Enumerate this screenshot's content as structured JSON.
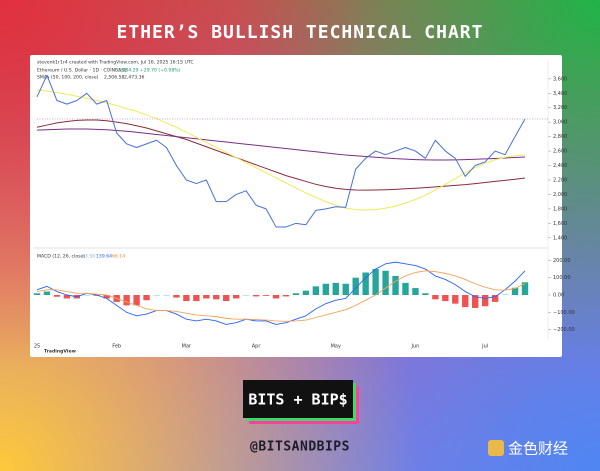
{
  "header": {
    "title": "ETHER’S BULLISH TECHNICAL CHART"
  },
  "logo": "BITS + BIP$",
  "handle": "@BITSANDBIPS",
  "watermark": "金色财经",
  "tradingview": "TradingView",
  "chart_data": [
    {
      "type": "line",
      "attribution": "stevenk1r1r4 created with TradingView.com, Jul 16, 2025 16:15 UTC",
      "title": "Ethereum / U.S. Dollar · 1D · COINBASE",
      "quote": "3,044.29 +29.70 (+0.98%)",
      "indicator_label": "SMAs (50, 100, 200, close)",
      "indicator_values": [
        "2,506.58",
        "2,473.36"
      ],
      "ylim": [
        1300,
        3750
      ],
      "yticks": [
        {
          "value": 1400,
          "label": "1,400"
        },
        {
          "value": 1600,
          "label": "1,600"
        },
        {
          "value": 1800,
          "label": "1,800"
        },
        {
          "value": 2000,
          "label": "2,000"
        },
        {
          "value": 2200,
          "label": "2,200"
        },
        {
          "value": 2400,
          "label": "2,400"
        },
        {
          "value": 2600,
          "label": "2,600"
        },
        {
          "value": 2800,
          "label": "2,800"
        },
        {
          "value": 3000,
          "label": "3,000"
        },
        {
          "value": 3200,
          "label": "3,200"
        },
        {
          "value": 3400,
          "label": "3,400"
        },
        {
          "value": 3600,
          "label": "3,600"
        }
      ],
      "series": [
        {
          "color": "#8b2c3a",
          "values": [
            2930,
            2960,
            2990,
            3010,
            3025,
            3030,
            3030,
            3020,
            3000,
            2980,
            2950,
            2920,
            2880,
            2840,
            2800,
            2760,
            2710,
            2660,
            2610,
            2560,
            2510,
            2460,
            2410,
            2360,
            2310,
            2260,
            2220,
            2180,
            2140,
            2110,
            2085,
            2070,
            2062,
            2060,
            2062,
            2065,
            2070,
            2078,
            2085,
            2095,
            2105,
            2115,
            2125,
            2135,
            2150,
            2165,
            2180,
            2195,
            2210,
            2227
          ]
        },
        {
          "color": "#7a2e86",
          "values": [
            2890,
            2895,
            2900,
            2905,
            2905,
            2905,
            2900,
            2895,
            2885,
            2875,
            2860,
            2845,
            2830,
            2815,
            2800,
            2785,
            2770,
            2755,
            2740,
            2725,
            2710,
            2695,
            2680,
            2665,
            2650,
            2635,
            2620,
            2605,
            2590,
            2575,
            2560,
            2545,
            2535,
            2525,
            2515,
            2505,
            2495,
            2488,
            2482,
            2478,
            2476,
            2476,
            2478,
            2482,
            2487,
            2492,
            2498,
            2505,
            2512,
            2518
          ]
        },
        {
          "color": "#f3e85a",
          "values": [
            3445,
            3430,
            3410,
            3385,
            3360,
            3330,
            3300,
            3265,
            3230,
            3190,
            3150,
            3100,
            3050,
            2990,
            2930,
            2860,
            2790,
            2720,
            2650,
            2580,
            2510,
            2440,
            2370,
            2300,
            2230,
            2160,
            2090,
            2020,
            1960,
            1900,
            1850,
            1810,
            1790,
            1784,
            1790,
            1810,
            1840,
            1880,
            1930,
            1990,
            2060,
            2140,
            2220,
            2300,
            2370,
            2430,
            2480,
            2515,
            2535,
            2546
          ]
        },
        {
          "color": "#4a6fd8",
          "values": [
            3350,
            3650,
            3300,
            3250,
            3300,
            3400,
            3250,
            3300,
            2850,
            2700,
            2650,
            2700,
            2750,
            2650,
            2400,
            2200,
            2150,
            2200,
            1900,
            1900,
            2000,
            2050,
            1850,
            1800,
            1550,
            1550,
            1600,
            1580,
            1780,
            1800,
            1830,
            1820,
            2350,
            2500,
            2600,
            2550,
            2600,
            2650,
            2600,
            2500,
            2750,
            2600,
            2500,
            2250,
            2400,
            2450,
            2600,
            2550,
            2800,
            3044.29
          ]
        }
      ],
      "price_line_color": "#9c4fb8"
    },
    {
      "type": "line",
      "indicator_label": "MACD (12, 26, close)",
      "indicator_values": [
        "73.50",
        "139.64",
        "66.14"
      ],
      "categories": [
        "25",
        null,
        null,
        null,
        null,
        null,
        null,
        null,
        "Feb",
        null,
        null,
        null,
        null,
        null,
        null,
        "Mar",
        null,
        null,
        null,
        null,
        null,
        null,
        "Apr",
        null,
        null,
        null,
        null,
        null,
        null,
        null,
        "May",
        null,
        null,
        null,
        null,
        null,
        null,
        null,
        "Jun",
        null,
        null,
        null,
        null,
        null,
        null,
        "Jul",
        null,
        null,
        null,
        null
      ],
      "ylim": [
        -260,
        260
      ],
      "yticks": [
        {
          "value": 200,
          "label": "200.00"
        },
        {
          "value": 100,
          "label": "100.00"
        },
        {
          "value": 0,
          "label": "0.00"
        },
        {
          "value": -100,
          "label": "−100.00"
        },
        {
          "value": -200,
          "label": "−200.00"
        }
      ],
      "histogram": {
        "positive_color": "#26a69a",
        "negative_color": "#ef5350",
        "values": [
          10,
          20,
          -10,
          -20,
          -20,
          0,
          -5,
          -20,
          -40,
          -60,
          -60,
          -30,
          0,
          0,
          -15,
          -35,
          -35,
          -20,
          -25,
          -35,
          -20,
          0,
          -8,
          -5,
          -20,
          -8,
          10,
          25,
          50,
          65,
          70,
          65,
          100,
          130,
          150,
          140,
          110,
          70,
          40,
          10,
          -25,
          -35,
          -50,
          -70,
          -75,
          -65,
          -40,
          2,
          42,
          73.5
        ]
      },
      "series": [
        {
          "color": "#2962ff",
          "values": [
            30,
            50,
            20,
            0,
            -10,
            10,
            0,
            -20,
            -60,
            -100,
            -120,
            -110,
            -90,
            -90,
            -110,
            -140,
            -150,
            -140,
            -150,
            -170,
            -160,
            -140,
            -150,
            -150,
            -170,
            -160,
            -140,
            -120,
            -80,
            -50,
            -30,
            -20,
            40,
            100,
            150,
            180,
            190,
            180,
            170,
            150,
            110,
            90,
            60,
            20,
            -10,
            -20,
            -10,
            30,
            80,
            139.64
          ]
        },
        {
          "color": "#f5a25a",
          "values": [
            20,
            30,
            30,
            20,
            10,
            10,
            5,
            0,
            -20,
            -40,
            -60,
            -80,
            -90,
            -90,
            -95,
            -105,
            -115,
            -120,
            -125,
            -135,
            -140,
            -140,
            -142,
            -145,
            -150,
            -152,
            -150,
            -145,
            -130,
            -115,
            -100,
            -85,
            -60,
            -30,
            0,
            40,
            80,
            110,
            130,
            140,
            135,
            125,
            110,
            90,
            65,
            45,
            30,
            28,
            38,
            66.14
          ]
        }
      ]
    }
  ]
}
